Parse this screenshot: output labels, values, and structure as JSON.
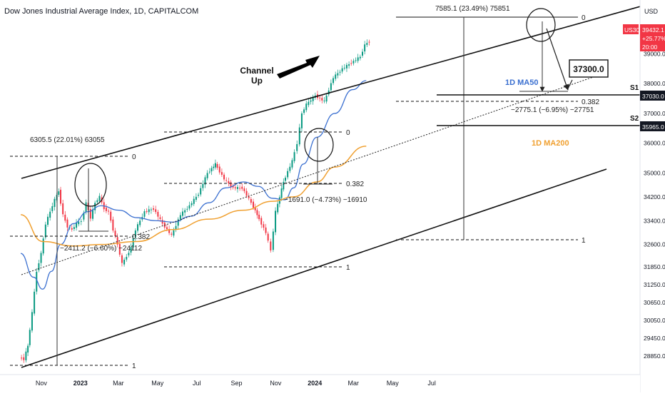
{
  "header": {
    "title": "Dow Jones Industrial Average Index, 1D, CAPITALCOM"
  },
  "axis": {
    "currency": "USD"
  },
  "price_badge": {
    "symbol": "US30",
    "price": "39432.1",
    "change": "+25.77%",
    "time": "20:00"
  },
  "annotations": {
    "channel": [
      "Channel",
      "Up"
    ],
    "target": "37300.0",
    "ma50": "1D MA50",
    "ma200": "1D MA200",
    "s1": "S1",
    "s2": "S2",
    "s1_value": "37030.0",
    "s2_value": "35965.0",
    "measure_right_top": "7585.1 (23.49%) 75851",
    "measure_right_drop": "−2775.1 (−6.95%) −27751",
    "measure_left_top": "6305.5 (22.01%) 63055",
    "measure_left_drop": "−2411.2 (−6.60%) −24112",
    "measure_mid_drop": "−1691.0 (−4.73%) −16910"
  },
  "chart_data": {
    "type": "line",
    "title": "Dow Jones Industrial Average Index, 1D, CAPITALCOM",
    "xlabel": "",
    "ylabel": "",
    "ylim": [
      28400,
      40400
    ],
    "x_ticks": [
      "Nov",
      "2023",
      "Mar",
      "May",
      "Jul",
      "Sep",
      "Nov",
      "2024",
      "Mar",
      "May",
      "Jul"
    ],
    "y_ticks": [
      28850,
      29450,
      30050,
      30650,
      31250,
      31850,
      32600,
      33400,
      34200,
      35000,
      36000,
      37000,
      38000,
      39000
    ],
    "series": [
      {
        "name": "price",
        "x": [
          "2022-09-30",
          "2022-10-07",
          "2022-10-13",
          "2022-10-20",
          "2022-10-27",
          "2022-11-03",
          "2022-11-10",
          "2022-11-17",
          "2022-11-24",
          "2022-11-30",
          "2022-12-07",
          "2022-12-14",
          "2022-12-21",
          "2022-12-28",
          "2023-01-05",
          "2023-01-12",
          "2023-01-19",
          "2023-01-26",
          "2023-02-02",
          "2023-02-09",
          "2023-02-16",
          "2023-02-23",
          "2023-03-02",
          "2023-03-09",
          "2023-03-16",
          "2023-03-23",
          "2023-03-30",
          "2023-04-13",
          "2023-04-27",
          "2023-05-11",
          "2023-05-25",
          "2023-06-08",
          "2023-06-22",
          "2023-07-06",
          "2023-07-20",
          "2023-08-01",
          "2023-08-15",
          "2023-08-29",
          "2023-09-12",
          "2023-09-26",
          "2023-10-05",
          "2023-10-19",
          "2023-10-27",
          "2023-11-03",
          "2023-11-15",
          "2023-11-29",
          "2023-12-07",
          "2023-12-14",
          "2023-12-21",
          "2024-01-04",
          "2024-01-18",
          "2024-02-01",
          "2024-02-15",
          "2024-02-29",
          "2024-03-14",
          "2024-03-21",
          "2024-03-28"
        ],
        "values": [
          28800,
          28750,
          29200,
          30300,
          31700,
          32300,
          33300,
          33700,
          34100,
          34400,
          33600,
          33200,
          33100,
          33300,
          33400,
          34000,
          33500,
          34000,
          34200,
          33800,
          33700,
          33100,
          32600,
          31950,
          32200,
          32500,
          33100,
          33700,
          33800,
          33300,
          32900,
          33600,
          33900,
          34300,
          35000,
          35300,
          34800,
          34500,
          34500,
          34000,
          33600,
          33000,
          32400,
          33700,
          34700,
          35400,
          36000,
          37000,
          37300,
          37600,
          37400,
          38200,
          38500,
          38700,
          38900,
          39300,
          39432
        ]
      },
      {
        "name": "1D MA50",
        "x": [
          "2022-09-30",
          "2022-10-20",
          "2022-11-03",
          "2022-11-17",
          "2022-12-01",
          "2022-12-21",
          "2023-01-12",
          "2023-02-02",
          "2023-03-02",
          "2023-03-30",
          "2023-04-27",
          "2023-05-25",
          "2023-06-22",
          "2023-07-20",
          "2023-08-15",
          "2023-09-12",
          "2023-10-05",
          "2023-10-27",
          "2023-11-15",
          "2023-11-29",
          "2023-12-14",
          "2024-01-04",
          "2024-02-01",
          "2024-02-29",
          "2024-03-21"
        ],
        "values": [
          32300,
          31500,
          31100,
          31700,
          32600,
          33300,
          33700,
          33900,
          33750,
          33500,
          33400,
          33350,
          33550,
          34000,
          34500,
          34700,
          34550,
          34150,
          34100,
          34500,
          35300,
          36200,
          37000,
          37800,
          38100
        ]
      },
      {
        "name": "1D MA200",
        "x": [
          "2022-09-30",
          "2022-11-03",
          "2022-12-21",
          "2023-02-02",
          "2023-03-30",
          "2023-05-25",
          "2023-07-20",
          "2023-09-12",
          "2023-10-27",
          "2023-11-29",
          "2024-01-04",
          "2024-02-01",
          "2024-03-21"
        ],
        "values": [
          33600,
          32700,
          32550,
          32600,
          32700,
          33100,
          33450,
          33750,
          34050,
          34200,
          34700,
          35200,
          35900
        ]
      }
    ]
  }
}
